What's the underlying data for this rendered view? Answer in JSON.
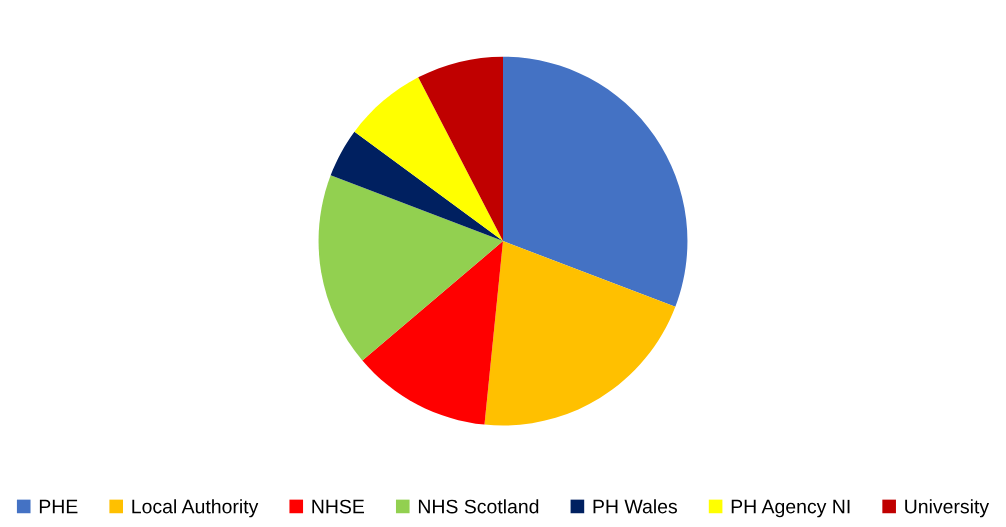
{
  "chart_data": {
    "type": "pie",
    "categories": [
      "PHE",
      "Local Authority",
      "NHSE",
      "NHS Scotland",
      "PH Wales",
      "PH Agency NI",
      "University"
    ],
    "values": [
      30.8,
      20.8,
      12.2,
      17.0,
      4.3,
      7.3,
      7.6
    ],
    "colors": [
      "#4472c4",
      "#ffc000",
      "#ff0000",
      "#92d050",
      "#002060",
      "#ffff00",
      "#c00000"
    ],
    "legend": "bottom"
  }
}
